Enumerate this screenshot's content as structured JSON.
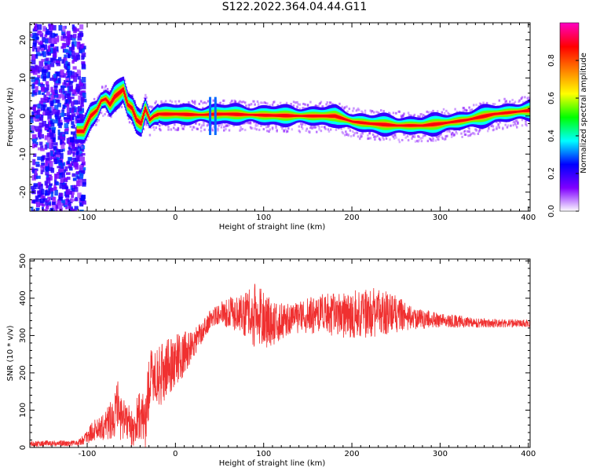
{
  "title": "S122.2022.364.04.44.G11",
  "chart_data": [
    {
      "type": "heatmap",
      "xlabel": "Height of straight line (km)",
      "ylabel": "Frequency (Hz)",
      "xlim": [
        -165,
        402
      ],
      "ylim": [
        -25,
        24.5
      ],
      "x_ticks": [
        -100,
        0,
        100,
        200,
        300,
        400
      ],
      "y_ticks": [
        -20,
        -10,
        0,
        10,
        20
      ],
      "colorbar": {
        "label": "Normalized spectral amplitude",
        "range": [
          0,
          1
        ],
        "ticks": [
          "0.0",
          "0.2",
          "0.4",
          "0.6",
          "0.8"
        ],
        "colors": [
          "#ffffff",
          "#8000ff",
          "#0000ff",
          "#00ffff",
          "#00ff00",
          "#ffff00",
          "#ff8000",
          "#ff0000",
          "#ff00c0"
        ]
      },
      "ridge": {
        "x": [
          -115,
          -105,
          -97,
          -90,
          -85,
          -80,
          -75,
          -70,
          -65,
          -60,
          -55,
          -50,
          -45,
          -40,
          -35,
          -30,
          -25,
          -20,
          0,
          30,
          45,
          60,
          100,
          150,
          180,
          200,
          220,
          250,
          280,
          300,
          330,
          360,
          402
        ],
        "y": [
          -4,
          -4,
          0,
          1.5,
          4,
          4.5,
          3,
          5,
          6,
          7,
          3,
          2,
          -1,
          -2,
          2,
          -1,
          0,
          0.5,
          0.5,
          0.3,
          0.5,
          0.5,
          0.2,
          0,
          0,
          -1.5,
          -2,
          -2.5,
          -2.5,
          -2,
          -1,
          0.5,
          1.5
        ]
      }
    },
    {
      "type": "line",
      "xlabel": "Height of straight line (km)",
      "ylabel": "SNR (10 * v/v)",
      "xlim": [
        -165,
        402
      ],
      "ylim": [
        0,
        505
      ],
      "x_ticks": [
        -100,
        0,
        100,
        200,
        300,
        400
      ],
      "y_ticks": [
        0,
        100,
        200,
        300,
        400,
        500
      ],
      "color": "#f03030",
      "envelope": {
        "x": [
          -165,
          -110,
          -100,
          -90,
          -80,
          -70,
          -65,
          -60,
          -55,
          -50,
          -40,
          -35,
          -30,
          -25,
          -20,
          -10,
          0,
          10,
          20,
          30,
          40,
          50,
          70,
          80,
          90,
          100,
          110,
          130,
          150,
          170,
          190,
          210,
          230,
          250,
          270,
          300,
          330,
          360,
          402
        ],
        "mean": [
          10,
          12,
          30,
          50,
          60,
          85,
          110,
          55,
          90,
          45,
          90,
          60,
          160,
          200,
          185,
          210,
          235,
          250,
          275,
          310,
          345,
          360,
          360,
          355,
          350,
          345,
          330,
          345,
          355,
          358,
          352,
          358,
          362,
          358,
          345,
          342,
          336,
          333,
          333
        ],
        "spread": [
          8,
          8,
          20,
          30,
          40,
          60,
          70,
          60,
          70,
          50,
          70,
          80,
          90,
          80,
          80,
          80,
          70,
          60,
          40,
          30,
          25,
          30,
          50,
          60,
          90,
          80,
          60,
          40,
          50,
          55,
          60,
          70,
          65,
          50,
          30,
          20,
          15,
          12,
          10
        ]
      }
    }
  ]
}
